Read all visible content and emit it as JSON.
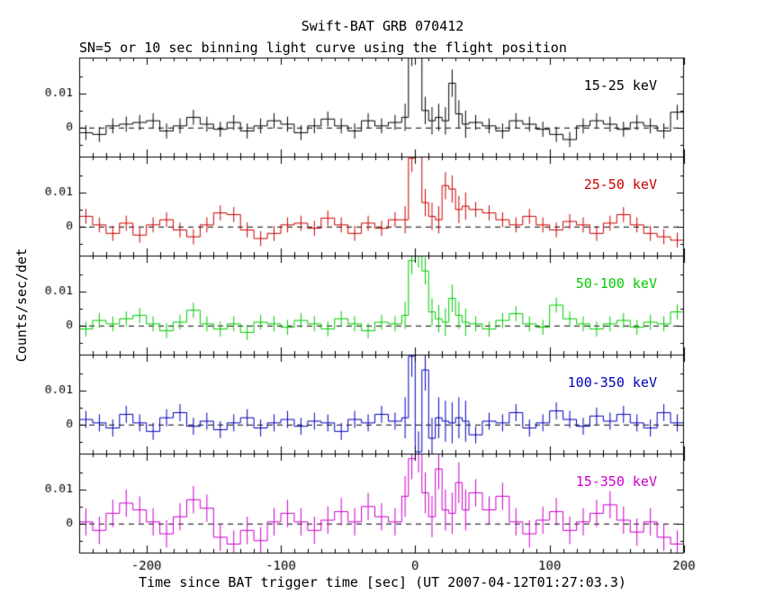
{
  "title": "Swift-BAT GRB 070412",
  "subtitle": "SN=5 or 10 sec binning light curve using the flight position",
  "ylabel": "Counts/sec/det",
  "xlabel": "Time since BAT trigger time [sec] (UT 2007-04-12T01:27:03.3)",
  "chart_data": {
    "type": "line",
    "style": "stacked-step-histogram-with-error-bars",
    "panels": 5,
    "xlim": [
      -250,
      200
    ],
    "x_major_ticks": [
      -200,
      -100,
      0,
      100,
      200
    ],
    "x_minor_step": 10,
    "ylim": [
      -0.0085,
      0.0205
    ],
    "y_major_ticks": [
      0,
      0.01
    ],
    "y_major_tick_labels": [
      "0",
      "0.01"
    ],
    "y_minor_ticks": [
      -0.005,
      0.005,
      0.015
    ],
    "zero_line_style": "dashed",
    "x_edges": [
      -250,
      -240,
      -230,
      -220,
      -210,
      -200,
      -190,
      -180,
      -170,
      -160,
      -150,
      -140,
      -130,
      -120,
      -110,
      -100,
      -90,
      -80,
      -70,
      -60,
      -50,
      -40,
      -30,
      -20,
      -10,
      -5,
      0,
      5,
      10,
      15,
      20,
      25,
      30,
      35,
      40,
      50,
      60,
      70,
      80,
      90,
      100,
      110,
      120,
      130,
      140,
      150,
      160,
      170,
      180,
      190,
      200
    ],
    "series": [
      {
        "name": "15-25 keV",
        "color": "#000000",
        "err": 0.0022,
        "err_fine": 0.004,
        "values": [
          -0.0015,
          -0.002,
          0.0005,
          0.001,
          0.0015,
          0.002,
          -0.001,
          0.0005,
          0.003,
          0.001,
          -0.0005,
          0.0015,
          -0.001,
          0.0005,
          0.002,
          0.001,
          -0.0015,
          0.0005,
          0.0025,
          0.0005,
          -0.001,
          0.002,
          0.0005,
          0.0015,
          0.003,
          0.022,
          0.027,
          0.005,
          0.002,
          0.003,
          0.002,
          0.013,
          0.004,
          0.001,
          0.0015,
          0.0005,
          -0.001,
          0.002,
          0.001,
          -0.0005,
          -0.002,
          -0.0035,
          0.0005,
          0.002,
          0.001,
          -0.0005,
          0.0015,
          0.0005,
          -0.001,
          0.0045
        ]
      },
      {
        "name": "25-50 keV",
        "color": "#cc0000",
        "err": 0.0022,
        "err_fine": 0.004,
        "values": [
          0.003,
          0.0005,
          -0.002,
          0.001,
          -0.0025,
          0.0005,
          0.002,
          -0.001,
          -0.003,
          0.0005,
          0.004,
          0.0035,
          -0.001,
          -0.0035,
          -0.002,
          0.0005,
          0.001,
          -0.0005,
          0.0025,
          0.0005,
          -0.002,
          0.001,
          -0.0005,
          0.002,
          0.002,
          0.02,
          0.028,
          0.007,
          0.003,
          0.002,
          0.012,
          0.011,
          0.005,
          0.006,
          0.005,
          0.004,
          0.002,
          0.0005,
          0.003,
          0.0005,
          -0.001,
          0.0015,
          0.0005,
          -0.002,
          0.001,
          0.0035,
          0.0005,
          -0.002,
          -0.003,
          -0.004
        ]
      },
      {
        "name": "50-100 keV",
        "color": "#00cc00",
        "err": 0.0022,
        "err_fine": 0.004,
        "values": [
          -0.001,
          0.0015,
          0.0005,
          0.002,
          0.003,
          0.0005,
          -0.0015,
          0.001,
          0.0045,
          0.0005,
          -0.001,
          0.0005,
          -0.002,
          0.001,
          0.0005,
          -0.0005,
          0.0015,
          0.0005,
          -0.001,
          0.002,
          0.0005,
          -0.0015,
          0.001,
          0.0005,
          0.003,
          0.019,
          0.021,
          0.016,
          0.004,
          0.002,
          0.001,
          0.008,
          0.003,
          0.001,
          0.0005,
          -0.001,
          0.0015,
          0.0035,
          0.0005,
          -0.0005,
          0.006,
          0.002,
          0.0005,
          -0.001,
          0.0005,
          0.0015,
          -0.0005,
          0.001,
          0.0005,
          0.004
        ]
      },
      {
        "name": "100-350 keV",
        "color": "#0000bb",
        "err": 0.0025,
        "err_fine": 0.006,
        "values": [
          0.0015,
          0.0005,
          -0.001,
          0.003,
          0.0005,
          -0.002,
          0.002,
          0.0035,
          -0.0005,
          0.001,
          -0.0015,
          0.0005,
          0.002,
          -0.001,
          0.0005,
          0.0015,
          -0.0005,
          0.001,
          0.0005,
          -0.002,
          0.0015,
          0.0005,
          0.003,
          0.001,
          0.002,
          0.02,
          -0.008,
          0.016,
          -0.004,
          0.002,
          0.001,
          0.0005,
          0.002,
          0.001,
          -0.003,
          0.001,
          0.0005,
          0.0035,
          -0.001,
          0.0005,
          0.004,
          0.0015,
          -0.0005,
          0.0025,
          0.001,
          0.003,
          0.0005,
          -0.001,
          0.0035,
          0.0005
        ]
      },
      {
        "name": "15-350 keV",
        "color": "#cc00cc",
        "err": 0.004,
        "err_fine": 0.006,
        "values": [
          0.0005,
          -0.002,
          0.003,
          0.006,
          0.004,
          0.0005,
          -0.003,
          0.002,
          0.007,
          0.0045,
          -0.004,
          -0.006,
          -0.002,
          -0.005,
          0.0005,
          0.003,
          0.0005,
          -0.002,
          0.001,
          0.0035,
          0.0005,
          0.005,
          0.002,
          0.0005,
          0.008,
          0.019,
          0.021,
          0.009,
          0.002,
          0.016,
          0.004,
          0.003,
          0.012,
          0.004,
          0.009,
          0.004,
          0.008,
          0.0005,
          -0.003,
          0.001,
          0.0035,
          -0.002,
          0.0005,
          0.003,
          0.0055,
          0.001,
          -0.0025,
          0.0005,
          -0.004,
          -0.006
        ]
      }
    ]
  }
}
